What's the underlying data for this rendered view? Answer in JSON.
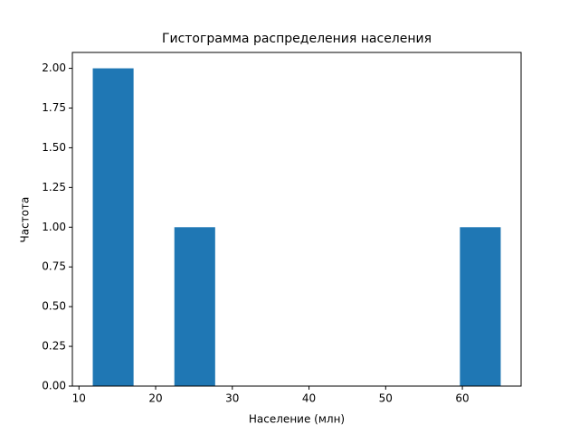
{
  "chart_data": {
    "type": "histogram",
    "title": "Гистограмма распределения населения",
    "x_label": "Население (млн)",
    "y_label": "Частота",
    "bins": [
      11.8,
      17.12,
      22.44,
      27.76,
      33.08,
      38.4,
      43.72,
      49.04,
      54.36,
      59.68,
      65.0
    ],
    "counts": [
      2,
      0,
      1,
      0,
      0,
      0,
      0,
      0,
      0,
      1
    ],
    "color": "#1f77b4",
    "xlim": [
      9.14,
      67.66
    ],
    "xticks": [
      10,
      20,
      30,
      40,
      50,
      60
    ],
    "ylim": [
      0,
      2.1
    ],
    "yticks": [
      {
        "value": 0,
        "label": "0.00"
      },
      {
        "value": 0.25,
        "label": "0.25"
      },
      {
        "value": 0.5,
        "label": "0.50"
      },
      {
        "value": 0.75,
        "label": "0.75"
      },
      {
        "value": 1,
        "label": "1.00"
      },
      {
        "value": 1.25,
        "label": "1.25"
      },
      {
        "value": 1.5,
        "label": "1.50"
      },
      {
        "value": 1.75,
        "label": "1.75"
      },
      {
        "value": 2,
        "label": "2.00"
      }
    ],
    "grid": false
  }
}
